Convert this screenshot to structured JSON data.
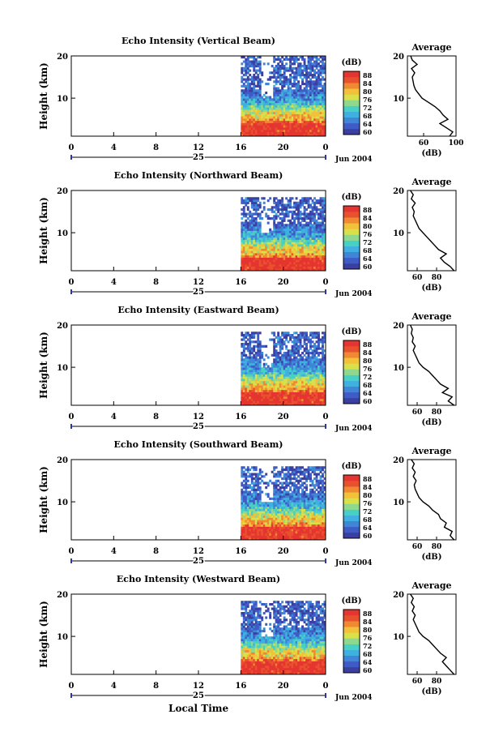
{
  "page": {
    "xlabel_bottom": "Local Time",
    "date_label": "Jun 2004",
    "day_label": "25"
  },
  "colors": {
    "scale": [
      "#3b3fa0",
      "#3f5bc6",
      "#3f86d6",
      "#3fb0e0",
      "#49d0c4",
      "#8fd88c",
      "#d8e04a",
      "#f3c03a",
      "#f08a32",
      "#e9502e",
      "#e53530"
    ],
    "background": "#ffffff"
  },
  "chart_data": [
    {
      "type": "heatmap",
      "title": "Echo Intensity (Vertical Beam)",
      "ylabel": "Height (km)",
      "xlabel": "Local Time",
      "x_ticks": [
        "0",
        "4",
        "8",
        "12",
        "16",
        "20",
        "0"
      ],
      "y_ticks": [
        "10",
        "20"
      ],
      "ylim": [
        1,
        20
      ],
      "xlim": [
        0,
        24
      ],
      "data_start_hour": 16,
      "colorbar": {
        "unit": "(dB)",
        "ticks": [
          "88",
          "84",
          "80",
          "76",
          "72",
          "68",
          "64",
          "60"
        ]
      },
      "average": {
        "title": "Average",
        "unit": "(dB)",
        "x_ticks": [
          "60",
          "100"
        ],
        "xlim": [
          40,
          100
        ],
        "y_ticks": [
          "10",
          "20"
        ],
        "profile": [
          [
            92,
            1
          ],
          [
            96,
            2
          ],
          [
            88,
            3
          ],
          [
            80,
            4
          ],
          [
            90,
            5
          ],
          [
            84,
            6
          ],
          [
            80,
            7
          ],
          [
            74,
            8
          ],
          [
            66,
            9
          ],
          [
            58,
            10
          ],
          [
            54,
            11
          ],
          [
            50,
            12
          ],
          [
            48,
            13
          ],
          [
            47,
            14
          ],
          [
            46,
            15
          ],
          [
            49,
            16
          ],
          [
            45,
            17
          ],
          [
            52,
            18
          ],
          [
            46,
            19
          ],
          [
            44,
            20
          ]
        ]
      }
    },
    {
      "type": "heatmap",
      "title": "Echo Intensity (Northward Beam)",
      "ylabel": "Height (km)",
      "xlabel": "Local Time",
      "x_ticks": [
        "0",
        "4",
        "8",
        "12",
        "16",
        "20",
        "0"
      ],
      "y_ticks": [
        "10",
        "20"
      ],
      "ylim": [
        1,
        20
      ],
      "xlim": [
        0,
        24
      ],
      "data_start_hour": 16,
      "colorbar": {
        "unit": "(dB)",
        "ticks": [
          "88",
          "84",
          "80",
          "76",
          "72",
          "68",
          "64",
          "60"
        ]
      },
      "average": {
        "title": "Average",
        "unit": "(dB)",
        "x_ticks": [
          "60",
          "80"
        ],
        "xlim": [
          50,
          100
        ],
        "y_ticks": [
          "10",
          "20"
        ],
        "profile": [
          [
            98,
            1
          ],
          [
            94,
            2
          ],
          [
            88,
            3
          ],
          [
            84,
            4
          ],
          [
            90,
            5
          ],
          [
            82,
            6
          ],
          [
            78,
            7
          ],
          [
            74,
            8
          ],
          [
            70,
            9
          ],
          [
            66,
            10
          ],
          [
            62,
            11
          ],
          [
            60,
            12
          ],
          [
            58,
            13
          ],
          [
            56,
            14
          ],
          [
            57,
            15
          ],
          [
            55,
            16
          ],
          [
            58,
            17
          ],
          [
            54,
            18
          ],
          [
            56,
            19
          ],
          [
            53,
            20
          ]
        ]
      }
    },
    {
      "type": "heatmap",
      "title": "Echo Intensity (Eastward Beam)",
      "ylabel": "Height (km)",
      "xlabel": "Local Time",
      "x_ticks": [
        "0",
        "4",
        "8",
        "12",
        "16",
        "20",
        "0"
      ],
      "y_ticks": [
        "10",
        "20"
      ],
      "ylim": [
        1,
        20
      ],
      "xlim": [
        0,
        24
      ],
      "data_start_hour": 16,
      "colorbar": {
        "unit": "(dB)",
        "ticks": [
          "88",
          "84",
          "80",
          "76",
          "72",
          "68",
          "64",
          "60"
        ]
      },
      "average": {
        "title": "Average",
        "unit": "(dB)",
        "x_ticks": [
          "60",
          "80"
        ],
        "xlim": [
          50,
          100
        ],
        "y_ticks": [
          "10",
          "20"
        ],
        "profile": [
          [
            98,
            1
          ],
          [
            92,
            2
          ],
          [
            96,
            3
          ],
          [
            86,
            4
          ],
          [
            92,
            5
          ],
          [
            84,
            6
          ],
          [
            80,
            7
          ],
          [
            76,
            8
          ],
          [
            72,
            9
          ],
          [
            66,
            10
          ],
          [
            62,
            11
          ],
          [
            60,
            12
          ],
          [
            58,
            13
          ],
          [
            56,
            14
          ],
          [
            58,
            15
          ],
          [
            55,
            16
          ],
          [
            56,
            17
          ],
          [
            54,
            18
          ],
          [
            55,
            19
          ],
          [
            53,
            20
          ]
        ]
      }
    },
    {
      "type": "heatmap",
      "title": "Echo Intensity (Southward Beam)",
      "ylabel": "Height (km)",
      "xlabel": "Local Time",
      "x_ticks": [
        "0",
        "4",
        "8",
        "12",
        "16",
        "20",
        "0"
      ],
      "y_ticks": [
        "10",
        "20"
      ],
      "ylim": [
        1,
        20
      ],
      "xlim": [
        0,
        24
      ],
      "data_start_hour": 16,
      "colorbar": {
        "unit": "(dB)",
        "ticks": [
          "88",
          "84",
          "80",
          "76",
          "72",
          "68",
          "64",
          "60"
        ]
      },
      "average": {
        "title": "Average",
        "unit": "(dB)",
        "x_ticks": [
          "60",
          "80"
        ],
        "xlim": [
          50,
          100
        ],
        "y_ticks": [
          "10",
          "20"
        ],
        "profile": [
          [
            98,
            1
          ],
          [
            94,
            2
          ],
          [
            96,
            3
          ],
          [
            88,
            4
          ],
          [
            90,
            5
          ],
          [
            84,
            6
          ],
          [
            82,
            7
          ],
          [
            76,
            8
          ],
          [
            72,
            9
          ],
          [
            66,
            10
          ],
          [
            62,
            11
          ],
          [
            60,
            12
          ],
          [
            58,
            13
          ],
          [
            57,
            14
          ],
          [
            59,
            15
          ],
          [
            56,
            16
          ],
          [
            58,
            17
          ],
          [
            55,
            18
          ],
          [
            57,
            19
          ],
          [
            54,
            20
          ]
        ]
      }
    },
    {
      "type": "heatmap",
      "title": "Echo Intensity (Westward Beam)",
      "ylabel": "Height (km)",
      "xlabel": "Local Time",
      "x_ticks": [
        "0",
        "4",
        "8",
        "12",
        "16",
        "20",
        "0"
      ],
      "y_ticks": [
        "10",
        "20"
      ],
      "ylim": [
        1,
        20
      ],
      "xlim": [
        0,
        24
      ],
      "data_start_hour": 16,
      "colorbar": {
        "unit": "(dB)",
        "ticks": [
          "88",
          "84",
          "80",
          "76",
          "72",
          "68",
          "64",
          "60"
        ]
      },
      "average": {
        "title": "Average",
        "unit": "(dB)",
        "x_ticks": [
          "60",
          "80"
        ],
        "xlim": [
          50,
          100
        ],
        "y_ticks": [
          "10",
          "20"
        ],
        "profile": [
          [
            98,
            1
          ],
          [
            94,
            2
          ],
          [
            90,
            3
          ],
          [
            86,
            4
          ],
          [
            90,
            5
          ],
          [
            84,
            6
          ],
          [
            80,
            7
          ],
          [
            76,
            8
          ],
          [
            72,
            9
          ],
          [
            66,
            10
          ],
          [
            62,
            11
          ],
          [
            60,
            12
          ],
          [
            58,
            13
          ],
          [
            56,
            14
          ],
          [
            58,
            15
          ],
          [
            55,
            16
          ],
          [
            57,
            17
          ],
          [
            54,
            18
          ],
          [
            56,
            19
          ],
          [
            53,
            20
          ]
        ]
      }
    }
  ]
}
